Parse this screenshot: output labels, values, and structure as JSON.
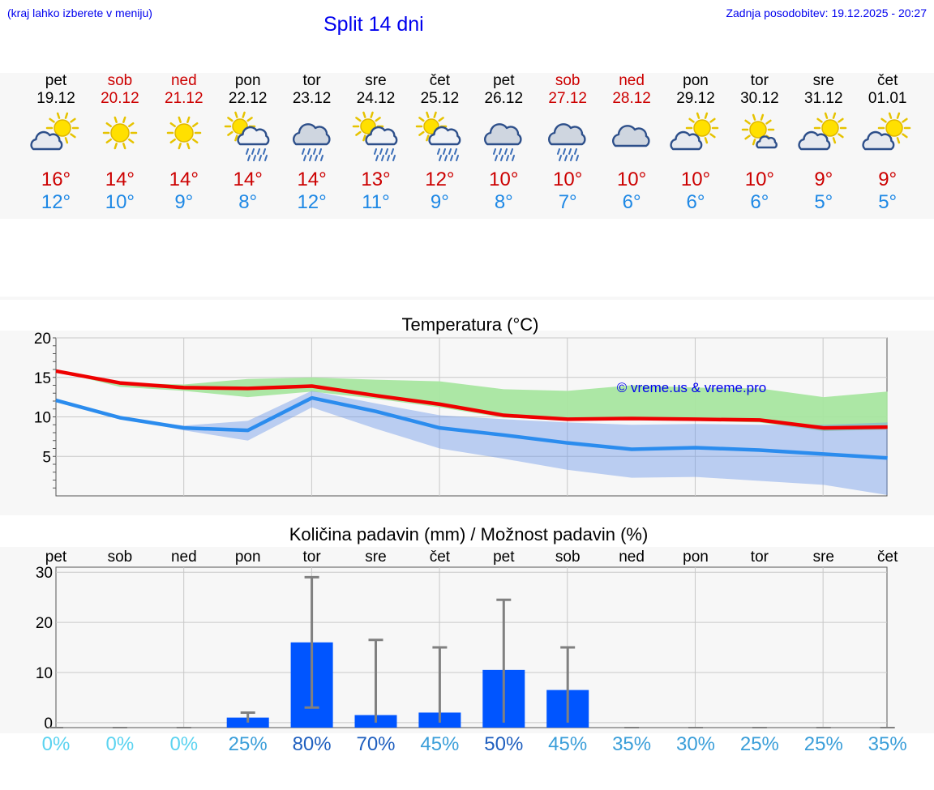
{
  "header": {
    "hint": "(kraj lahko izberete v meniju)",
    "title": "Split 14 dni",
    "updated": "Zadnja posodobitev: 19.12.2025 - 20:27"
  },
  "days": [
    {
      "name": "pet",
      "date": "19.12",
      "weekend": false,
      "icon": "sun-cloud-icon",
      "max": "16°",
      "min": "12°"
    },
    {
      "name": "sob",
      "date": "20.12",
      "weekend": true,
      "icon": "sun-icon",
      "max": "14°",
      "min": "10°"
    },
    {
      "name": "ned",
      "date": "21.12",
      "weekend": true,
      "icon": "sun-icon",
      "max": "14°",
      "min": "9°"
    },
    {
      "name": "pon",
      "date": "22.12",
      "weekend": false,
      "icon": "sun-cloud-rain-icon",
      "max": "14°",
      "min": "8°"
    },
    {
      "name": "tor",
      "date": "23.12",
      "weekend": false,
      "icon": "cloud-rain-icon",
      "max": "14°",
      "min": "12°"
    },
    {
      "name": "sre",
      "date": "24.12",
      "weekend": false,
      "icon": "sun-cloud-rain-icon",
      "max": "13°",
      "min": "11°"
    },
    {
      "name": "čet",
      "date": "25.12",
      "weekend": false,
      "icon": "sun-cloud-rain-icon",
      "max": "12°",
      "min": "9°"
    },
    {
      "name": "pet",
      "date": "26.12",
      "weekend": false,
      "icon": "cloud-rain-icon",
      "max": "10°",
      "min": "8°"
    },
    {
      "name": "sob",
      "date": "27.12",
      "weekend": true,
      "icon": "cloud-rain-icon",
      "max": "10°",
      "min": "7°"
    },
    {
      "name": "ned",
      "date": "28.12",
      "weekend": true,
      "icon": "cloud-icon",
      "max": "10°",
      "min": "6°"
    },
    {
      "name": "pon",
      "date": "29.12",
      "weekend": false,
      "icon": "sun-cloud-icon",
      "max": "10°",
      "min": "6°"
    },
    {
      "name": "tor",
      "date": "30.12",
      "weekend": false,
      "icon": "sun-small-cloud-icon",
      "max": "10°",
      "min": "6°"
    },
    {
      "name": "sre",
      "date": "31.12",
      "weekend": false,
      "icon": "sun-cloud-icon",
      "max": "9°",
      "min": "5°"
    },
    {
      "name": "čet",
      "date": "01.01",
      "weekend": false,
      "icon": "sun-cloud-icon",
      "max": "9°",
      "min": "5°"
    }
  ],
  "colors": {
    "max": "#ee0000",
    "min": "#2b8cee",
    "max_band": "#a8e6a0",
    "min_band": "#a9c0f0",
    "overlap": "#76c4a6",
    "bar": "#0055ff",
    "whisker": "#808080"
  },
  "chart_data": [
    {
      "type": "line",
      "title": "Temperatura (°C)",
      "watermark": "© vreme.us & vreme.pro",
      "ylim": [
        0,
        20
      ],
      "yticks": [
        5,
        10,
        15,
        20
      ],
      "series": [
        {
          "name": "max",
          "values": [
            15.8,
            14.3,
            13.7,
            13.6,
            13.9,
            12.7,
            11.6,
            10.2,
            9.7,
            9.8,
            9.7,
            9.6,
            8.6,
            8.7
          ]
        },
        {
          "name": "min",
          "values": [
            12.1,
            9.9,
            8.6,
            8.3,
            12.4,
            10.7,
            8.6,
            7.7,
            6.7,
            5.9,
            6.1,
            5.8,
            5.3,
            4.8
          ]
        }
      ],
      "bands": [
        {
          "name": "max-range",
          "low": [
            15.8,
            13.8,
            13.3,
            12.5,
            13.2,
            12.3,
            11.2,
            9.9,
            9.6,
            9.6,
            9.5,
            9.3,
            8.2,
            8.4
          ],
          "high": [
            15.8,
            14.3,
            14.1,
            14.8,
            15.0,
            14.7,
            14.5,
            13.5,
            13.3,
            14.0,
            13.7,
            13.6,
            12.5,
            13.2
          ]
        },
        {
          "name": "min-range",
          "low": [
            12.1,
            9.9,
            8.3,
            7.0,
            11.2,
            8.5,
            6.0,
            4.7,
            3.3,
            2.3,
            2.4,
            1.9,
            1.4,
            0.1
          ],
          "high": [
            12.1,
            9.9,
            8.9,
            9.5,
            13.3,
            11.7,
            10.2,
            9.7,
            9.3,
            9.0,
            9.1,
            9.0,
            9.0,
            9.3
          ]
        }
      ]
    },
    {
      "type": "bar",
      "title": "Količina padavin (mm) / Možnost padavin (%)",
      "categories": [
        "pet",
        "sob",
        "ned",
        "pon",
        "tor",
        "sre",
        "čet",
        "pet",
        "sob",
        "ned",
        "pon",
        "tor",
        "sre",
        "čet"
      ],
      "ylim": [
        -1,
        31
      ],
      "yticks": [
        0,
        10,
        20,
        30
      ],
      "values": [
        0,
        0,
        0,
        1,
        16,
        1.5,
        2,
        10.5,
        6.5,
        0,
        0,
        0,
        0,
        0
      ],
      "err_low": [
        0,
        0,
        0,
        0,
        3,
        0,
        0,
        0,
        0,
        0,
        0,
        0,
        0,
        0
      ],
      "err_high": [
        0,
        0,
        0,
        2,
        29,
        16.5,
        15,
        24.5,
        15,
        0,
        0,
        0,
        0,
        0
      ],
      "probability": [
        "0%",
        "0%",
        "0%",
        "25%",
        "80%",
        "70%",
        "45%",
        "50%",
        "45%",
        "35%",
        "30%",
        "25%",
        "25%",
        "35%"
      ],
      "probability_colors": [
        "#5bd3f0",
        "#5bd3f0",
        "#5bd3f0",
        "#3a9ed9",
        "#1f5fbf",
        "#1f5fbf",
        "#3a9ed9",
        "#1f5fbf",
        "#3a9ed9",
        "#3a9ed9",
        "#3a9ed9",
        "#3a9ed9",
        "#3a9ed9",
        "#3a9ed9"
      ]
    }
  ]
}
